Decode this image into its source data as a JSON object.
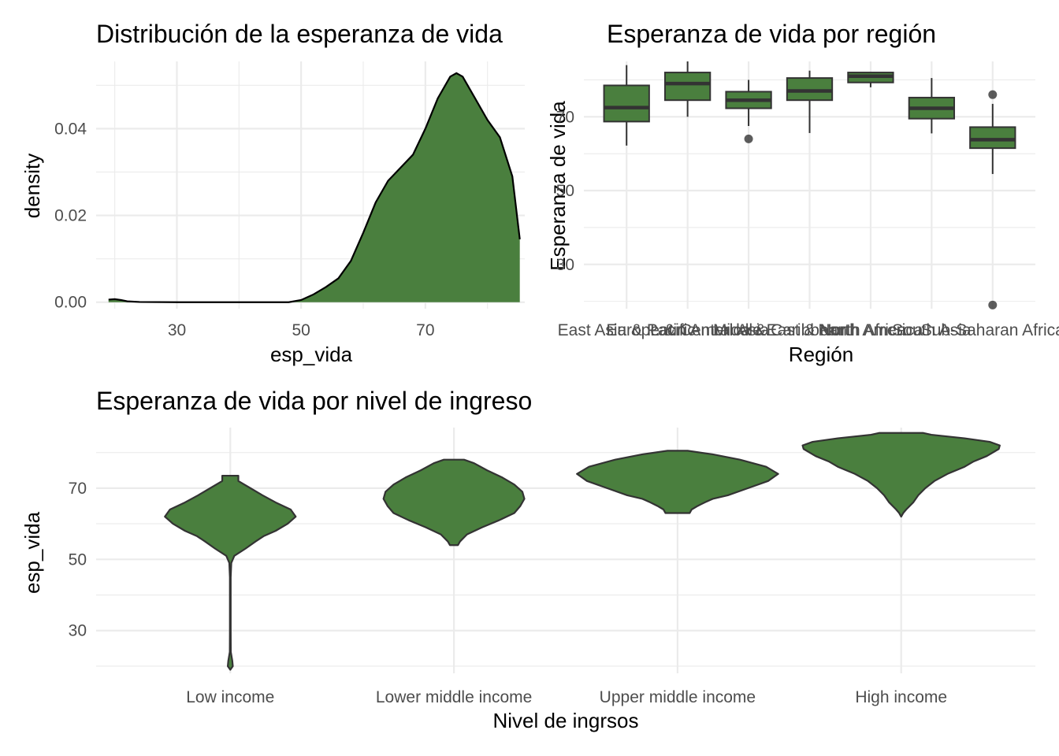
{
  "colors": {
    "fill": "#4a7f3e",
    "outline": "#333333",
    "grid": "#ebebeb"
  },
  "chart_data": [
    {
      "type": "area",
      "title": "Distribución de la esperanza de vida",
      "xlabel": "esp_vida",
      "ylabel": "density",
      "xlim": [
        17,
        86
      ],
      "ylim": [
        -0.0015,
        0.0555
      ],
      "x_ticks": [
        30,
        50,
        70
      ],
      "x_tick_labels": [
        "30",
        "50",
        "70"
      ],
      "y_ticks": [
        0,
        0.02,
        0.04
      ],
      "y_tick_labels": [
        "0.00",
        "0.02",
        "0.04"
      ],
      "grid": true,
      "points": [
        [
          19,
          0.0006
        ],
        [
          20,
          0.0007
        ],
        [
          21,
          0.0005
        ],
        [
          22,
          0.0002
        ],
        [
          24,
          5e-05
        ],
        [
          30,
          0.0
        ],
        [
          40,
          0.0
        ],
        [
          48,
          0.0
        ],
        [
          50,
          0.0005
        ],
        [
          52,
          0.0018
        ],
        [
          54,
          0.0035
        ],
        [
          56,
          0.0055
        ],
        [
          58,
          0.0095
        ],
        [
          60,
          0.016
        ],
        [
          62,
          0.023
        ],
        [
          64,
          0.028
        ],
        [
          66,
          0.031
        ],
        [
          68,
          0.034
        ],
        [
          70,
          0.04
        ],
        [
          72,
          0.047
        ],
        [
          74,
          0.052
        ],
        [
          75,
          0.0528
        ],
        [
          76,
          0.052
        ],
        [
          78,
          0.047
        ],
        [
          80,
          0.042
        ],
        [
          82,
          0.038
        ],
        [
          84,
          0.029
        ],
        [
          85.2,
          0.0145
        ]
      ]
    },
    {
      "type": "box",
      "title": "Esperanza de vida por región",
      "xlabel": "Región",
      "ylabel": "Esperanza de vida",
      "ylim": [
        18,
        85
      ],
      "y_ticks": [
        30,
        50,
        70
      ],
      "y_tick_labels": [
        "30",
        "50",
        "70"
      ],
      "categories": [
        "East Asia & Pacific",
        "Europe & Central Asia",
        "Latin America & Caribbean",
        "Middle East & North Africa",
        "North America",
        "South Asia",
        "Sub-Saharan Africa"
      ],
      "boxes": [
        {
          "min": 62.2,
          "q1": 68.7,
          "median": 72.5,
          "q3": 78.5,
          "max": 84.0,
          "outliers": []
        },
        {
          "min": 70.0,
          "q1": 74.5,
          "median": 79.0,
          "q3": 82.0,
          "max": 85.0,
          "outliers": []
        },
        {
          "min": 67.5,
          "q1": 72.3,
          "median": 74.5,
          "q3": 76.8,
          "max": 80.0,
          "outliers": [
            64.0
          ]
        },
        {
          "min": 65.6,
          "q1": 74.5,
          "median": 77.0,
          "q3": 80.5,
          "max": 82.5,
          "outliers": []
        },
        {
          "min": 78.0,
          "q1": 79.3,
          "median": 81.0,
          "q3": 82.0,
          "max": 82.0,
          "outliers": []
        },
        {
          "min": 65.5,
          "q1": 69.5,
          "median": 72.3,
          "q3": 75.2,
          "max": 80.5,
          "outliers": []
        },
        {
          "min": 54.5,
          "q1": 61.5,
          "median": 63.8,
          "q3": 67.2,
          "max": 73.5,
          "outliers": [
            76.0,
            19.0
          ]
        }
      ]
    },
    {
      "type": "violin",
      "title": "Esperanza de vida por nivel de ingreso",
      "xlabel": "Nivel de ingrsos",
      "ylabel": "esp_vida",
      "ylim": [
        18,
        87
      ],
      "y_ticks": [
        30,
        50,
        70
      ],
      "y_tick_labels": [
        "30",
        "50",
        "70"
      ],
      "categories": [
        "Low income",
        "Lower middle income",
        "Upper middle income",
        "High income"
      ],
      "violins": [
        {
          "profile": [
            [
              19.0,
              0.0
            ],
            [
              20.0,
              0.025
            ],
            [
              21.5,
              0.02
            ],
            [
              24,
              0.005
            ],
            [
              30,
              0.004
            ],
            [
              45,
              0.004
            ],
            [
              49,
              0.01
            ],
            [
              51,
              0.04
            ],
            [
              53,
              0.15
            ],
            [
              55,
              0.25
            ],
            [
              56.5,
              0.33
            ],
            [
              58,
              0.45
            ],
            [
              60,
              0.57
            ],
            [
              62,
              0.65
            ],
            [
              64,
              0.6
            ],
            [
              66,
              0.45
            ],
            [
              68,
              0.32
            ],
            [
              70,
              0.2
            ],
            [
              72,
              0.08
            ],
            [
              73.5,
              0.08
            ]
          ]
        },
        {
          "profile": [
            [
              54.0,
              0.04
            ],
            [
              55,
              0.06
            ],
            [
              57,
              0.13
            ],
            [
              59,
              0.28
            ],
            [
              61,
              0.45
            ],
            [
              63,
              0.6
            ],
            [
              65,
              0.66
            ],
            [
              67,
              0.7
            ],
            [
              69,
              0.68
            ],
            [
              71,
              0.6
            ],
            [
              73,
              0.48
            ],
            [
              75,
              0.33
            ],
            [
              77,
              0.2
            ],
            [
              78,
              0.1
            ]
          ]
        },
        {
          "profile": [
            [
              63.0,
              0.12
            ],
            [
              64,
              0.14
            ],
            [
              65,
              0.2
            ],
            [
              66,
              0.27
            ],
            [
              67,
              0.35
            ],
            [
              68,
              0.5
            ],
            [
              70,
              0.7
            ],
            [
              72,
              0.9
            ],
            [
              74,
              1.0
            ],
            [
              76,
              0.88
            ],
            [
              78,
              0.62
            ],
            [
              79.5,
              0.35
            ],
            [
              80.5,
              0.1
            ]
          ]
        },
        {
          "profile": [
            [
              62.0,
              0.0
            ],
            [
              63,
              0.02
            ],
            [
              64,
              0.05
            ],
            [
              66,
              0.12
            ],
            [
              68,
              0.17
            ],
            [
              70,
              0.24
            ],
            [
              72,
              0.33
            ],
            [
              74,
              0.46
            ],
            [
              76,
              0.63
            ],
            [
              77.5,
              0.72
            ],
            [
              79,
              0.85
            ],
            [
              81,
              0.97
            ],
            [
              82,
              0.98
            ],
            [
              83,
              0.88
            ],
            [
              84,
              0.63
            ],
            [
              85,
              0.3
            ],
            [
              85.5,
              0.22
            ]
          ]
        }
      ]
    }
  ]
}
